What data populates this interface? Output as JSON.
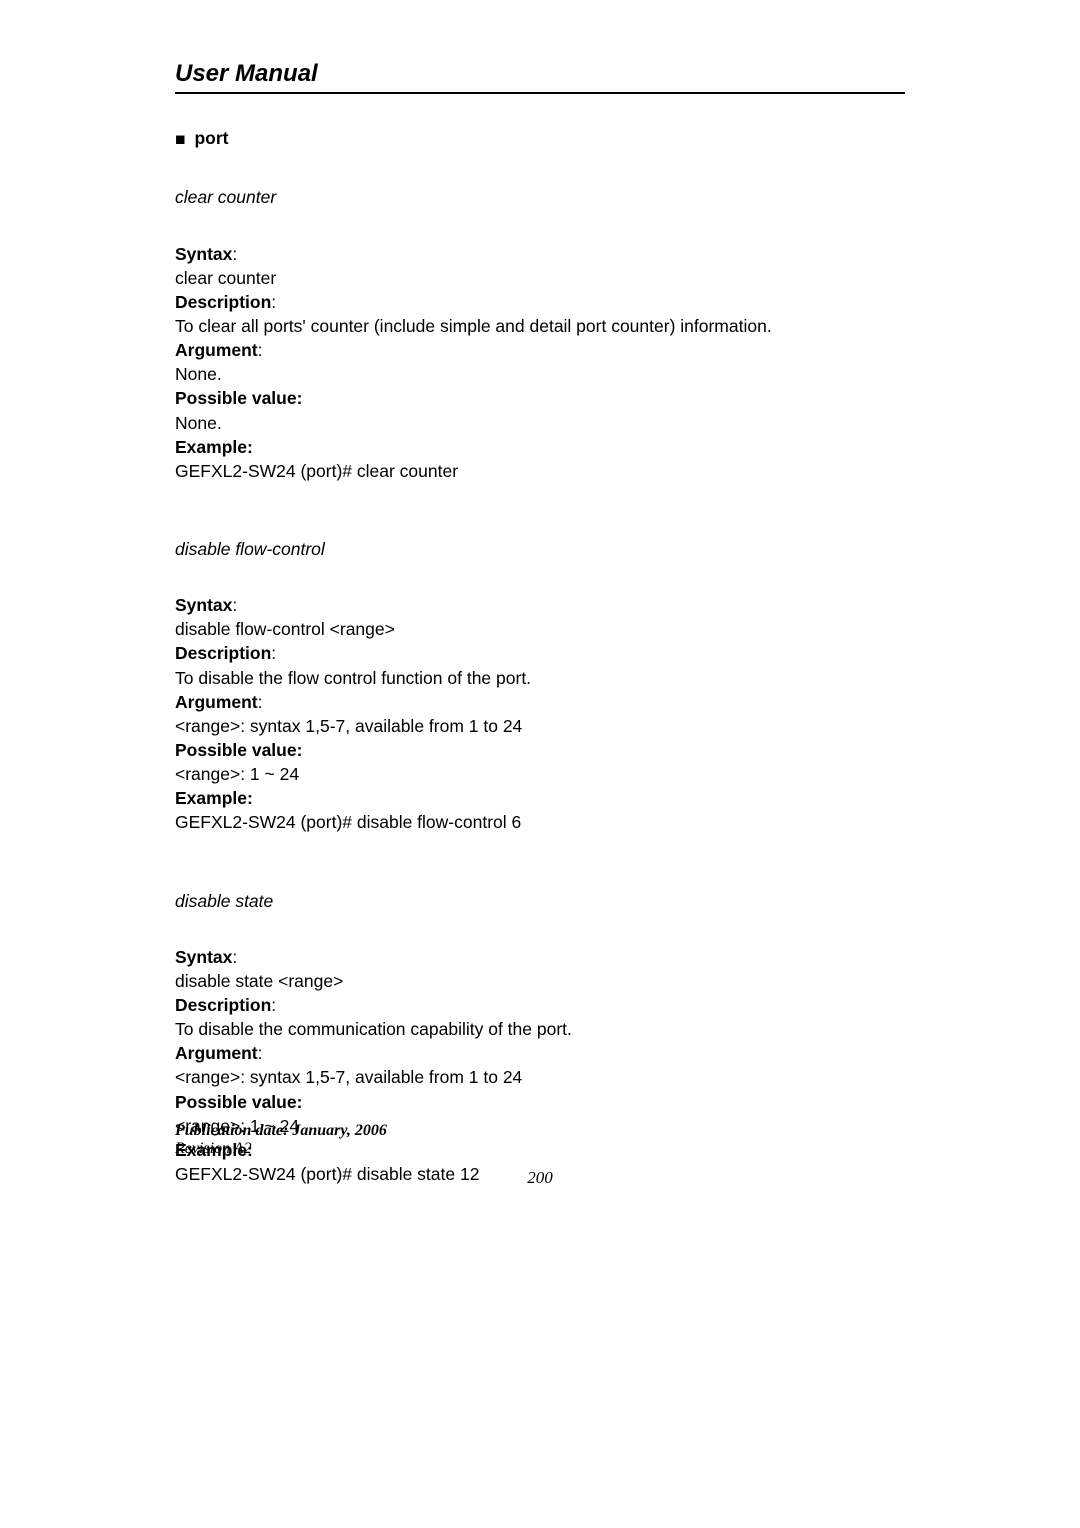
{
  "header": {
    "title": "User Manual"
  },
  "section": {
    "bullet": "■",
    "title": "port"
  },
  "commands": [
    {
      "name": "clear counter",
      "syntax_label": "Syntax",
      "syntax_value": "clear counter",
      "description_label": "Description",
      "description_value": "To clear all ports' counter (include simple and detail port counter) information.",
      "argument_label": "Argument",
      "argument_value": "None.",
      "possible_label": "Possible value:",
      "possible_value": "None.",
      "example_label": "Example:",
      "example_value": "GEFXL2-SW24 (port)# clear counter"
    },
    {
      "name": "disable flow-control",
      "syntax_label": "Syntax",
      "syntax_value": "disable flow-control <range>",
      "description_label": "Description",
      "description_value": "To disable the flow control function of the port.",
      "argument_label": "Argument",
      "argument_value": "<range>: syntax 1,5-7, available from 1 to 24",
      "possible_label": "Possible value:",
      "possible_value": "<range>: 1 ~ 24",
      "example_label": "Example:",
      "example_value": "GEFXL2-SW24 (port)# disable flow-control 6"
    },
    {
      "name": "disable state",
      "syntax_label": "Syntax",
      "syntax_value": "disable state <range>",
      "description_label": "Description",
      "description_value": "To disable the communication capability of the port.",
      "argument_label": "Argument",
      "argument_value": "<range>: syntax 1,5-7, available from 1 to 24",
      "possible_label": "Possible value:",
      "possible_value": "<range>: 1 ~ 24",
      "example_label": "Example:",
      "example_value": "GEFXL2-SW24 (port)# disable state 12"
    }
  ],
  "footer": {
    "pubdate": "Publication date: January, 2006",
    "revision": "Revision A2",
    "page_number": "200"
  }
}
